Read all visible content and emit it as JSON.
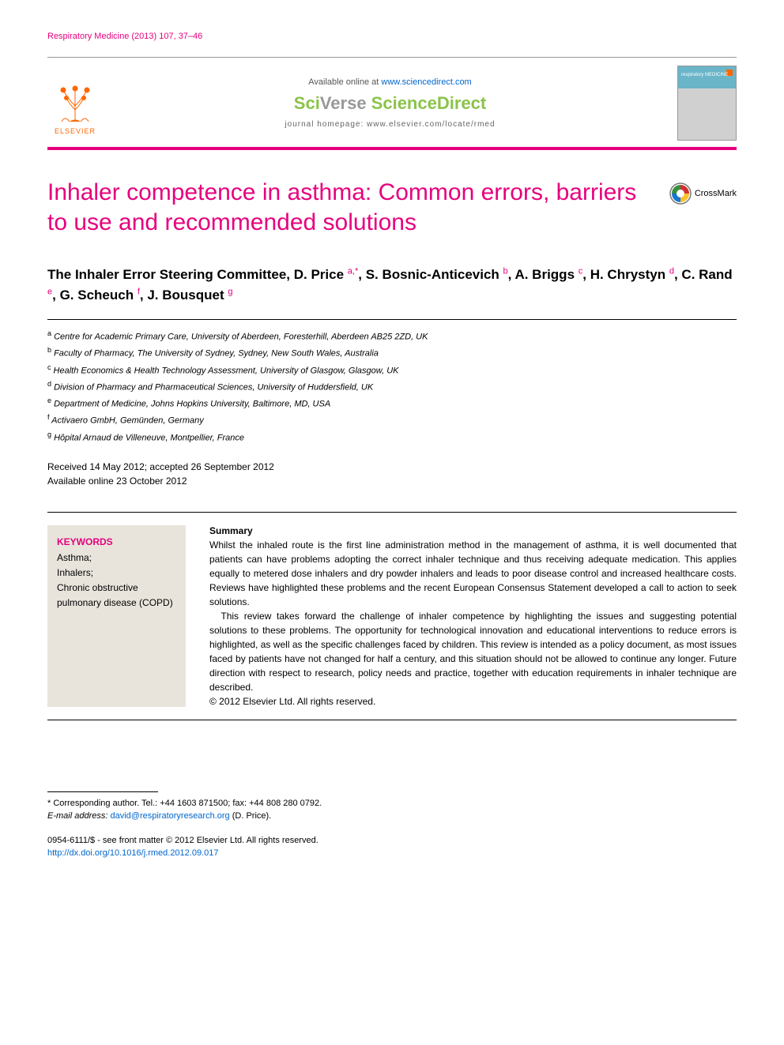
{
  "colors": {
    "brand_pink": "#e6007e",
    "elsevier_orange": "#ff6600",
    "sciverse_green": "#8bc34a",
    "link_blue": "#0066cc",
    "keyword_bg": "#e8e4dc",
    "text": "#000000",
    "background": "#ffffff"
  },
  "typography": {
    "title_fontsize": 30,
    "authors_fontsize": 17,
    "body_fontsize": 12,
    "affil_fontsize": 11,
    "footer_fontsize": 11
  },
  "running_head": "Respiratory Medicine (2013) 107, 37–46",
  "header": {
    "available_text": "Available online at ",
    "available_url": "www.sciencedirect.com",
    "brand_sci": "Sci",
    "brand_verse": "Verse ",
    "brand_sd": "ScienceDirect",
    "journal_homepage": "journal homepage: www.elsevier.com/locate/rmed",
    "elsevier_label": "ELSEVIER",
    "cover_label": "respiratory MEDICINE"
  },
  "crossmark_label": "CrossMark",
  "title": "Inhaler competence in asthma: Common errors, barriers to use and recommended solutions",
  "authors_line_prefix": "The Inhaler Error Steering Committee, ",
  "authors": [
    {
      "name": "D. Price",
      "aff": "a",
      "corr": true
    },
    {
      "name": "S. Bosnic-Anticevich",
      "aff": "b"
    },
    {
      "name": "A. Briggs",
      "aff": "c"
    },
    {
      "name": "H. Chrystyn",
      "aff": "d"
    },
    {
      "name": "C. Rand",
      "aff": "e"
    },
    {
      "name": "G. Scheuch",
      "aff": "f"
    },
    {
      "name": "J. Bousquet",
      "aff": "g"
    }
  ],
  "affiliations": [
    {
      "key": "a",
      "text": "Centre for Academic Primary Care, University of Aberdeen, Foresterhill, Aberdeen AB25 2ZD, UK"
    },
    {
      "key": "b",
      "text": "Faculty of Pharmacy, The University of Sydney, Sydney, New South Wales, Australia"
    },
    {
      "key": "c",
      "text": "Health Economics & Health Technology Assessment, University of Glasgow, Glasgow, UK"
    },
    {
      "key": "d",
      "text": "Division of Pharmacy and Pharmaceutical Sciences, University of Huddersfield, UK"
    },
    {
      "key": "e",
      "text": "Department of Medicine, Johns Hopkins University, Baltimore, MD, USA"
    },
    {
      "key": "f",
      "text": "Activaero GmbH, Gemünden, Germany"
    },
    {
      "key": "g",
      "text": "Hôpital Arnaud de Villeneuve, Montpellier, France"
    }
  ],
  "dates": {
    "received_accepted": "Received 14 May 2012; accepted 26 September 2012",
    "online": "Available online 23 October 2012"
  },
  "keywords": {
    "heading": "KEYWORDS",
    "items": "Asthma;\nInhalers;\nChronic obstructive pulmonary disease (COPD)"
  },
  "summary": {
    "heading": "Summary",
    "para1": "Whilst the inhaled route is the first line administration method in the management of asthma, it is well documented that patients can have problems adopting the correct inhaler technique and thus receiving adequate medication. This applies equally to metered dose inhalers and dry powder inhalers and leads to poor disease control and increased healthcare costs. Reviews have highlighted these problems and the recent European Consensus Statement developed a call to action to seek solutions.",
    "para2": "This review takes forward the challenge of inhaler competence by highlighting the issues and suggesting potential solutions to these problems. The opportunity for technological innovation and educational interventions to reduce errors is highlighted, as well as the specific challenges faced by children. This review is intended as a policy document, as most issues faced by patients have not changed for half a century, and this situation should not be allowed to continue any longer. Future direction with respect to research, policy needs and practice, together with education requirements in inhaler technique are described.",
    "copyright": "© 2012 Elsevier Ltd. All rights reserved."
  },
  "corresponding": {
    "line1": "* Corresponding author. Tel.: +44 1603 871500; fax: +44 808 280 0792.",
    "email_label": "E-mail address: ",
    "email": "david@respiratoryresearch.org",
    "email_suffix": " (D. Price)."
  },
  "footer": {
    "issn_line": "0954-6111/$ - see front matter © 2012 Elsevier Ltd. All rights reserved.",
    "doi": "http://dx.doi.org/10.1016/j.rmed.2012.09.017"
  }
}
